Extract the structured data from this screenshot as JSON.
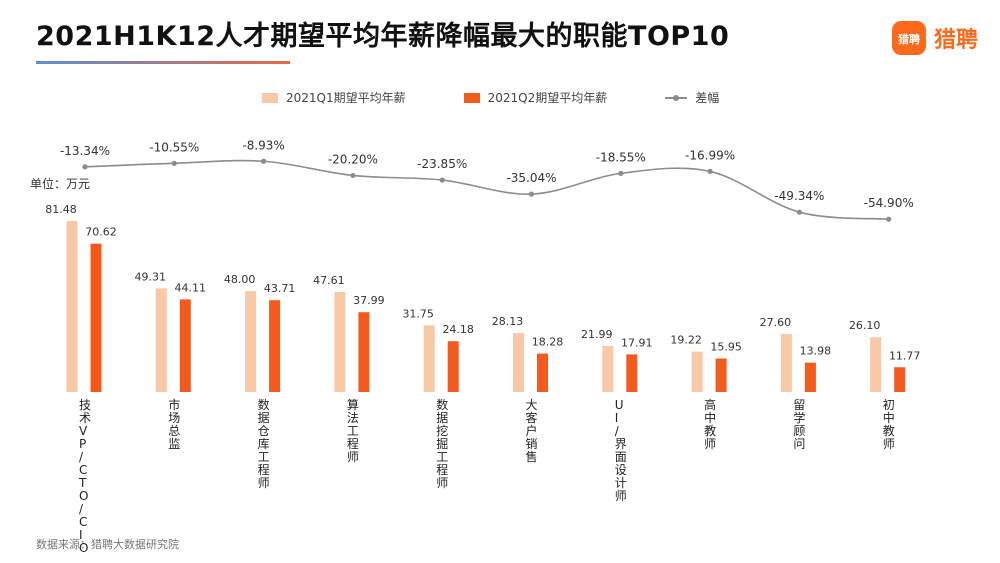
{
  "title": "2021H1K12人才期望平均年薪降幅最大的职能TOP10",
  "brand": {
    "badge_text": "猎聘",
    "name": "猎聘",
    "color": "#ff6a1a"
  },
  "legend": {
    "q1": "2021Q1期望平均年薪",
    "q2": "2021Q2期望平均年薪",
    "diff": "差幅"
  },
  "unit_label": "单位：万元",
  "source": "数据来源：猎聘大数据研究院",
  "colors": {
    "q1": "#f8c9a6",
    "q2": "#f35a1e",
    "line": "#8c8c8c"
  },
  "chart_data": {
    "type": "bar",
    "categories": [
      "技术VP/CTO/CIO",
      "市场总监",
      "数据仓库工程师",
      "算法工程师",
      "数据挖掘工程师",
      "大客户销售",
      "UI/界面设计师",
      "高中教师",
      "留学顾问",
      "初中教师"
    ],
    "series": [
      {
        "name": "2021Q1期望平均年薪",
        "values": [
          81.48,
          49.31,
          48.0,
          47.61,
          31.75,
          28.13,
          21.99,
          19.22,
          27.6,
          26.1
        ]
      },
      {
        "name": "2021Q2期望平均年薪",
        "values": [
          70.62,
          44.11,
          43.71,
          37.99,
          24.18,
          18.28,
          17.91,
          15.95,
          13.98,
          11.77
        ]
      }
    ],
    "diff_line": {
      "name": "差幅",
      "values": [
        -13.34,
        -10.55,
        -8.93,
        -20.2,
        -23.85,
        -35.04,
        -18.55,
        -16.99,
        -49.34,
        -54.9
      ],
      "labels": [
        "-13.34%",
        "-10.55%",
        "-8.93%",
        "-20.20%",
        "-23.85%",
        "-35.04%",
        "-18.55%",
        "-16.99%",
        "-49.34%",
        "-54.90%"
      ]
    },
    "bar_labels_q1": [
      "81.48",
      "49.31",
      "48.00",
      "47.61",
      "31.75",
      "28.13",
      "21.99",
      "19.22",
      "27.60",
      "26.10"
    ],
    "bar_labels_q2": [
      "70.62",
      "44.11",
      "43.71",
      "37.99",
      "24.18",
      "18.28",
      "17.91",
      "15.95",
      "13.98",
      "11.77"
    ],
    "ylim": [
      0,
      95
    ],
    "unit": "万元"
  }
}
